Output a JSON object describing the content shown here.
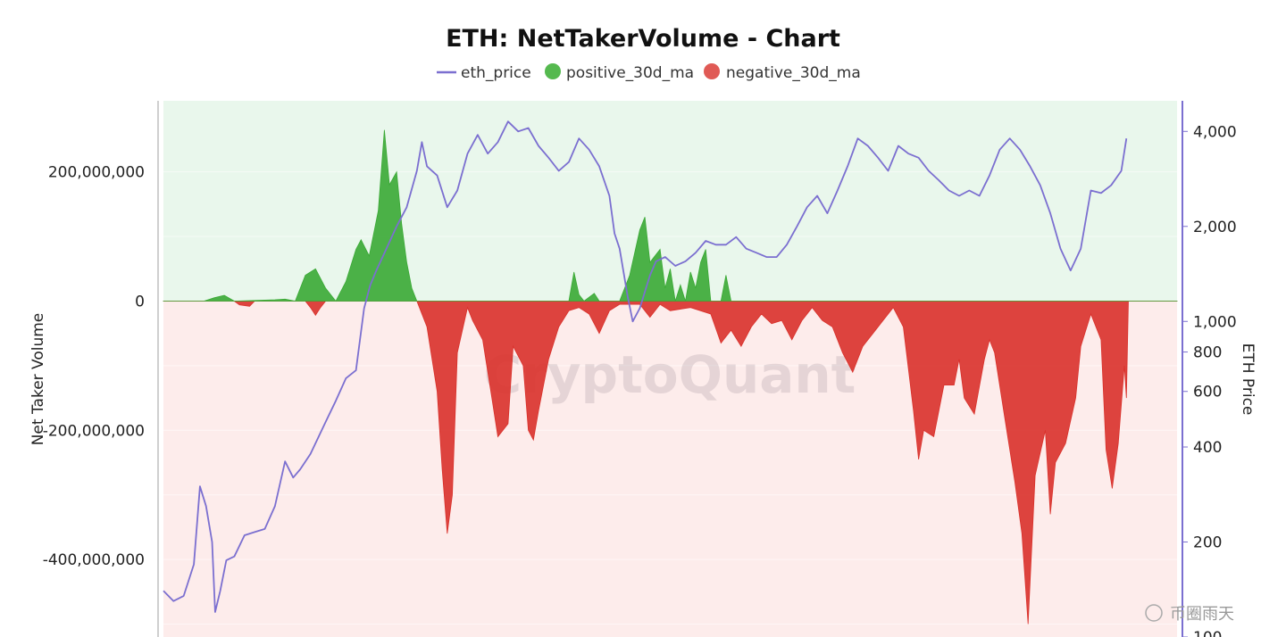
{
  "chart_data": {
    "type": "area",
    "title": "ETH: NetTakerVolume - Chart",
    "legend": [
      "eth_price",
      "positive_30d_ma",
      "negative_30d_ma"
    ],
    "legend_position": "top-center",
    "ylabel_left": "Net Taker Volume",
    "ylabel_right": "ETH Price",
    "left_ticks": [
      "200,000,000",
      "0",
      "-200,000,000",
      "-400,000,000"
    ],
    "right_ticks": [
      "4,000",
      "2,000",
      "1,000",
      "800",
      "600",
      "400",
      "200",
      "100"
    ],
    "ylim_left": [
      -520000000,
      310000000
    ],
    "ylim_right_log": [
      100,
      5000
    ],
    "colors": {
      "price": "#7b6fd0",
      "positive": "#3aa935",
      "negative": "#d9312b",
      "positive_bg": "#e9f7ec",
      "negative_bg": "#fdeceb"
    },
    "x_index_range": [
      0,
      100
    ],
    "series": [
      {
        "name": "eth_price",
        "axis": "right",
        "points": [
          [
            0,
            140
          ],
          [
            1,
            130
          ],
          [
            2,
            135
          ],
          [
            3,
            170
          ],
          [
            3.6,
            300
          ],
          [
            4.2,
            260
          ],
          [
            4.8,
            200
          ],
          [
            5.1,
            120
          ],
          [
            5.6,
            140
          ],
          [
            6.2,
            175
          ],
          [
            7,
            180
          ],
          [
            8,
            210
          ],
          [
            9,
            215
          ],
          [
            10,
            220
          ],
          [
            11,
            260
          ],
          [
            12,
            360
          ],
          [
            12.8,
            320
          ],
          [
            13.5,
            340
          ],
          [
            14.5,
            380
          ],
          [
            16,
            480
          ],
          [
            17,
            560
          ],
          [
            18,
            660
          ],
          [
            19,
            700
          ],
          [
            19.8,
            1100
          ],
          [
            20.4,
            1300
          ],
          [
            21,
            1450
          ],
          [
            22,
            1700
          ],
          [
            23,
            2000
          ],
          [
            24,
            2300
          ],
          [
            25,
            3000
          ],
          [
            25.5,
            3700
          ],
          [
            26,
            3100
          ],
          [
            27,
            2900
          ],
          [
            28,
            2300
          ],
          [
            29,
            2600
          ],
          [
            30,
            3400
          ],
          [
            31,
            3900
          ],
          [
            32,
            3400
          ],
          [
            33,
            3700
          ],
          [
            34,
            4300
          ],
          [
            35,
            4000
          ],
          [
            36,
            4100
          ],
          [
            37,
            3600
          ],
          [
            38,
            3300
          ],
          [
            39,
            3000
          ],
          [
            40,
            3200
          ],
          [
            41,
            3800
          ],
          [
            42,
            3500
          ],
          [
            43,
            3100
          ],
          [
            44,
            2500
          ],
          [
            44.5,
            1900
          ],
          [
            45,
            1700
          ],
          [
            45.8,
            1200
          ],
          [
            46.3,
            1000
          ],
          [
            47,
            1100
          ],
          [
            48,
            1400
          ],
          [
            48.6,
            1550
          ],
          [
            49.5,
            1600
          ],
          [
            50.5,
            1500
          ],
          [
            51.5,
            1550
          ],
          [
            52.5,
            1650
          ],
          [
            53.5,
            1800
          ],
          [
            54.5,
            1750
          ],
          [
            55.5,
            1750
          ],
          [
            56.5,
            1850
          ],
          [
            57.5,
            1700
          ],
          [
            58.5,
            1650
          ],
          [
            59.5,
            1600
          ],
          [
            60.5,
            1600
          ],
          [
            61.5,
            1750
          ],
          [
            62.5,
            2000
          ],
          [
            63.5,
            2300
          ],
          [
            64.5,
            2500
          ],
          [
            65.5,
            2200
          ],
          [
            66.5,
            2600
          ],
          [
            67.5,
            3100
          ],
          [
            68.5,
            3800
          ],
          [
            69.5,
            3600
          ],
          [
            70.5,
            3300
          ],
          [
            71.5,
            3000
          ],
          [
            72.5,
            3600
          ],
          [
            73.5,
            3400
          ],
          [
            74.5,
            3300
          ],
          [
            75.5,
            3000
          ],
          [
            76.5,
            2800
          ],
          [
            77.5,
            2600
          ],
          [
            78.5,
            2500
          ],
          [
            79.5,
            2600
          ],
          [
            80.5,
            2500
          ],
          [
            81.5,
            2900
          ],
          [
            82.5,
            3500
          ],
          [
            83.5,
            3800
          ],
          [
            84.5,
            3500
          ],
          [
            85.5,
            3100
          ],
          [
            86.5,
            2700
          ],
          [
            87.5,
            2200
          ],
          [
            88.5,
            1700
          ],
          [
            89.5,
            1450
          ],
          [
            90.5,
            1700
          ],
          [
            91.5,
            2600
          ],
          [
            92.5,
            2550
          ],
          [
            93.5,
            2700
          ],
          [
            94.5,
            3000
          ],
          [
            95,
            3800
          ]
        ]
      },
      {
        "name": "positive_30d_ma",
        "axis": "left",
        "points": [
          [
            0,
            0
          ],
          [
            4,
            0
          ],
          [
            5,
            5000000
          ],
          [
            6,
            9000000
          ],
          [
            7,
            0
          ],
          [
            11,
            2000000
          ],
          [
            12,
            3000000
          ],
          [
            13,
            0
          ],
          [
            14,
            40000000
          ],
          [
            15,
            50000000
          ],
          [
            16,
            20000000
          ],
          [
            17,
            0
          ],
          [
            18,
            30000000
          ],
          [
            19,
            80000000
          ],
          [
            19.5,
            95000000
          ],
          [
            20.3,
            70000000
          ],
          [
            21.2,
            140000000
          ],
          [
            21.8,
            265000000
          ],
          [
            22.3,
            180000000
          ],
          [
            23,
            200000000
          ],
          [
            23.5,
            120000000
          ],
          [
            24,
            60000000
          ],
          [
            24.5,
            20000000
          ],
          [
            25,
            0
          ],
          [
            40,
            0
          ],
          [
            40.5,
            45000000
          ],
          [
            41,
            10000000
          ],
          [
            41.5,
            0
          ],
          [
            42.5,
            12000000
          ],
          [
            43,
            0
          ],
          [
            45,
            0
          ],
          [
            46,
            40000000
          ],
          [
            47,
            110000000
          ],
          [
            47.5,
            130000000
          ],
          [
            48,
            60000000
          ],
          [
            49,
            80000000
          ],
          [
            49.5,
            20000000
          ],
          [
            50,
            50000000
          ],
          [
            50.5,
            0
          ],
          [
            51,
            25000000
          ],
          [
            51.5,
            0
          ],
          [
            52,
            45000000
          ],
          [
            52.5,
            20000000
          ],
          [
            53,
            60000000
          ],
          [
            53.5,
            80000000
          ],
          [
            54,
            0
          ],
          [
            55,
            0
          ],
          [
            55.5,
            40000000
          ],
          [
            56,
            0
          ],
          [
            100,
            0
          ]
        ]
      },
      {
        "name": "negative_30d_ma",
        "axis": "left",
        "points": [
          [
            0,
            0
          ],
          [
            7,
            0
          ],
          [
            7.5,
            -6000000
          ],
          [
            8.5,
            -8000000
          ],
          [
            9,
            0
          ],
          [
            14,
            0
          ],
          [
            14.5,
            -10000000
          ],
          [
            15,
            -22000000
          ],
          [
            15.5,
            -10000000
          ],
          [
            16,
            0
          ],
          [
            25,
            0
          ],
          [
            26,
            -40000000
          ],
          [
            27,
            -140000000
          ],
          [
            27.5,
            -260000000
          ],
          [
            28,
            -360000000
          ],
          [
            28.5,
            -300000000
          ],
          [
            29,
            -80000000
          ],
          [
            30,
            -10000000
          ],
          [
            30.5,
            -30000000
          ],
          [
            31.5,
            -60000000
          ],
          [
            32.5,
            -160000000
          ],
          [
            33,
            -210000000
          ],
          [
            34,
            -190000000
          ],
          [
            34.5,
            -70000000
          ],
          [
            35.5,
            -100000000
          ],
          [
            36,
            -200000000
          ],
          [
            36.5,
            -215000000
          ],
          [
            37,
            -170000000
          ],
          [
            38,
            -90000000
          ],
          [
            39,
            -40000000
          ],
          [
            40,
            -15000000
          ],
          [
            41,
            -10000000
          ],
          [
            42,
            -20000000
          ],
          [
            43,
            -50000000
          ],
          [
            44,
            -15000000
          ],
          [
            45,
            -5000000
          ],
          [
            47,
            -5000000
          ],
          [
            48,
            -25000000
          ],
          [
            49,
            -5000000
          ],
          [
            50,
            -15000000
          ],
          [
            52,
            -10000000
          ],
          [
            54,
            -20000000
          ],
          [
            55,
            -65000000
          ],
          [
            56,
            -45000000
          ],
          [
            57,
            -70000000
          ],
          [
            58,
            -40000000
          ],
          [
            59,
            -20000000
          ],
          [
            60,
            -35000000
          ],
          [
            61,
            -30000000
          ],
          [
            62,
            -60000000
          ],
          [
            63,
            -30000000
          ],
          [
            64,
            -10000000
          ],
          [
            65,
            -30000000
          ],
          [
            66,
            -40000000
          ],
          [
            67,
            -80000000
          ],
          [
            68,
            -110000000
          ],
          [
            69,
            -70000000
          ],
          [
            70,
            -50000000
          ],
          [
            71,
            -30000000
          ],
          [
            72,
            -10000000
          ],
          [
            73,
            -40000000
          ],
          [
            74,
            -170000000
          ],
          [
            74.5,
            -245000000
          ],
          [
            75,
            -200000000
          ],
          [
            76,
            -210000000
          ],
          [
            77,
            -130000000
          ],
          [
            78,
            -130000000
          ],
          [
            78.5,
            -90000000
          ],
          [
            79,
            -150000000
          ],
          [
            80,
            -175000000
          ],
          [
            81,
            -90000000
          ],
          [
            81.5,
            -60000000
          ],
          [
            82,
            -80000000
          ],
          [
            83,
            -180000000
          ],
          [
            84,
            -280000000
          ],
          [
            84.7,
            -360000000
          ],
          [
            85.3,
            -500000000
          ],
          [
            86,
            -270000000
          ],
          [
            87,
            -200000000
          ],
          [
            87.5,
            -330000000
          ],
          [
            88,
            -250000000
          ],
          [
            89,
            -220000000
          ],
          [
            90,
            -150000000
          ],
          [
            90.5,
            -70000000
          ],
          [
            91.5,
            -20000000
          ],
          [
            92.5,
            -60000000
          ],
          [
            93,
            -230000000
          ],
          [
            93.6,
            -290000000
          ],
          [
            94.2,
            -220000000
          ],
          [
            94.8,
            -100000000
          ],
          [
            95,
            -150000000
          ],
          [
            95.2,
            0
          ],
          [
            100,
            0
          ]
        ]
      }
    ],
    "watermark": "CryptoQuant",
    "corner_mark": "币圈雨天"
  }
}
